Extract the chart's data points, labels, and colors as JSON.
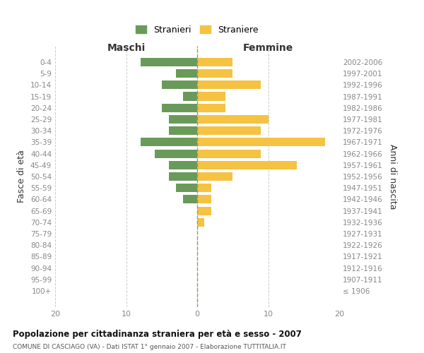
{
  "age_groups": [
    "0-4",
    "5-9",
    "10-14",
    "15-19",
    "20-24",
    "25-29",
    "30-34",
    "35-39",
    "40-44",
    "45-49",
    "50-54",
    "55-59",
    "60-64",
    "65-69",
    "70-74",
    "75-79",
    "80-84",
    "85-89",
    "90-94",
    "95-99",
    "100+"
  ],
  "birth_years": [
    "2002-2006",
    "1997-2001",
    "1992-1996",
    "1987-1991",
    "1982-1986",
    "1977-1981",
    "1972-1976",
    "1967-1971",
    "1962-1966",
    "1957-1961",
    "1952-1956",
    "1947-1951",
    "1942-1946",
    "1937-1941",
    "1932-1936",
    "1927-1931",
    "1922-1926",
    "1917-1921",
    "1912-1916",
    "1907-1911",
    "≤ 1906"
  ],
  "maschi": [
    8,
    3,
    5,
    2,
    5,
    4,
    4,
    8,
    6,
    4,
    4,
    3,
    2,
    0,
    0,
    0,
    0,
    0,
    0,
    0,
    0
  ],
  "femmine": [
    5,
    5,
    9,
    4,
    4,
    10,
    9,
    18,
    9,
    14,
    5,
    2,
    2,
    2,
    1,
    0,
    0,
    0,
    0,
    0,
    0
  ],
  "color_maschi": "#6a9a5a",
  "color_femmine": "#f5c242",
  "title": "Popolazione per cittadinanza straniera per età e sesso - 2007",
  "subtitle": "COMUNE DI CASCIAGO (VA) - Dati ISTAT 1° gennaio 2007 - Elaborazione TUTTITALIA.IT",
  "xlabel_left": "Maschi",
  "xlabel_right": "Femmine",
  "ylabel_left": "Fasce di età",
  "ylabel_right": "Anni di nascita",
  "legend_maschi": "Stranieri",
  "legend_femmine": "Straniere",
  "xlim": [
    -20,
    20
  ],
  "xticks": [
    -20,
    -10,
    0,
    10,
    20
  ],
  "xticklabels": [
    "20",
    "10",
    "0",
    "10",
    "20"
  ],
  "background_color": "#ffffff",
  "grid_color": "#cccccc"
}
